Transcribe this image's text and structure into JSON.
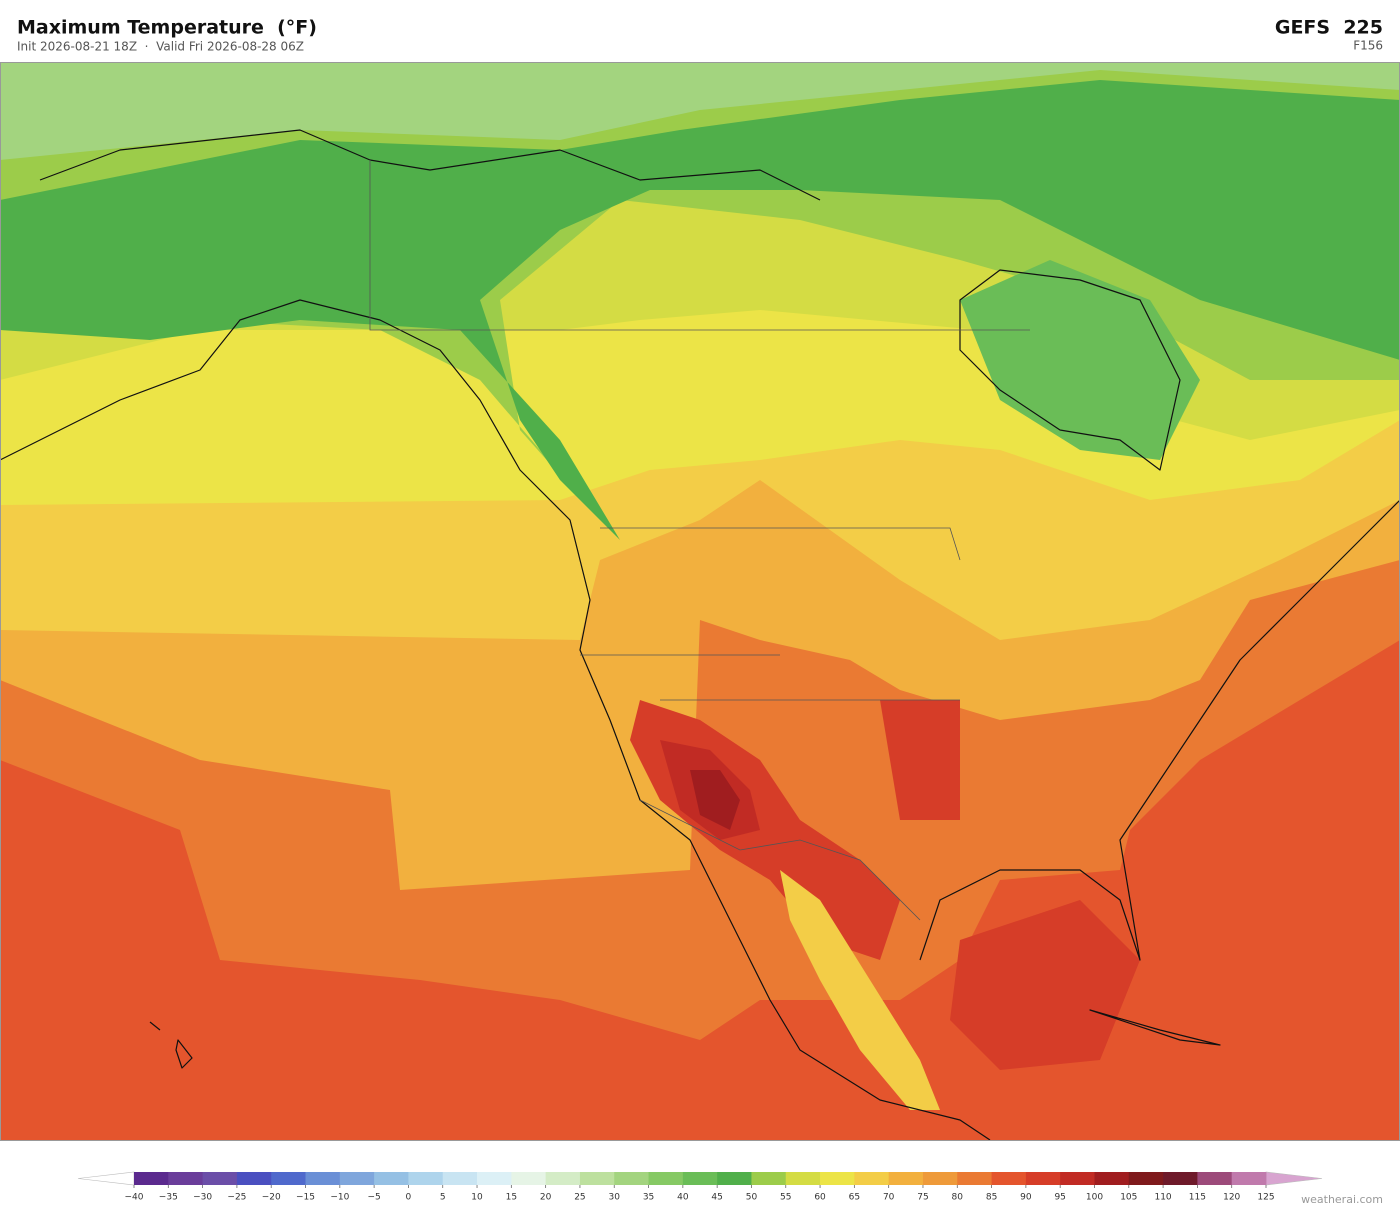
{
  "header": {
    "title": "Maximum Temperature  (°F)",
    "subtitle": "Init 2026-08-21 18Z  ·  Valid Fri 2026-08-28 06Z",
    "model": "GEFS  225",
    "forecast_hour": "F156"
  },
  "colorbar": {
    "ticks": [
      {
        "value": -40,
        "label": "−40"
      },
      {
        "value": -35,
        "label": "−35"
      },
      {
        "value": -30,
        "label": "−30"
      },
      {
        "value": -25,
        "label": "−25"
      },
      {
        "value": -20,
        "label": "−20"
      },
      {
        "value": -15,
        "label": "−15"
      },
      {
        "value": -10,
        "label": "−10"
      },
      {
        "value": -5,
        "label": "−5"
      },
      0,
      5,
      10,
      15,
      20,
      25,
      30,
      35,
      40,
      45,
      50,
      55,
      60,
      65,
      70,
      75,
      80,
      85,
      90,
      95,
      100,
      105,
      110,
      115,
      120,
      125
    ],
    "colors": [
      "#5b2a8e",
      "#6a3d9a",
      "#6b4ea8",
      "#4a4fc0",
      "#4f69cc",
      "#6a8fd6",
      "#7fa6dc",
      "#95c0e4",
      "#aed4ec",
      "#c8e4f2",
      "#dcf0f6",
      "#e6f4e6",
      "#d4ecc6",
      "#bde09e",
      "#a3d47f",
      "#86c964",
      "#6abd57",
      "#50af4a",
      "#9ccc4a",
      "#d4dc44",
      "#ece447",
      "#f3cd47",
      "#f2b03e",
      "#ee9a3a",
      "#ea7a33",
      "#e4552d",
      "#d63d28",
      "#c12b24",
      "#a01d1f",
      "#7f1a1c",
      "#6e1a2a",
      "#9c4a7a",
      "#c07aac"
    ],
    "under_color": "#ffffff",
    "over_color": "#d8a4d0"
  },
  "watermark": "weatherai.com"
}
